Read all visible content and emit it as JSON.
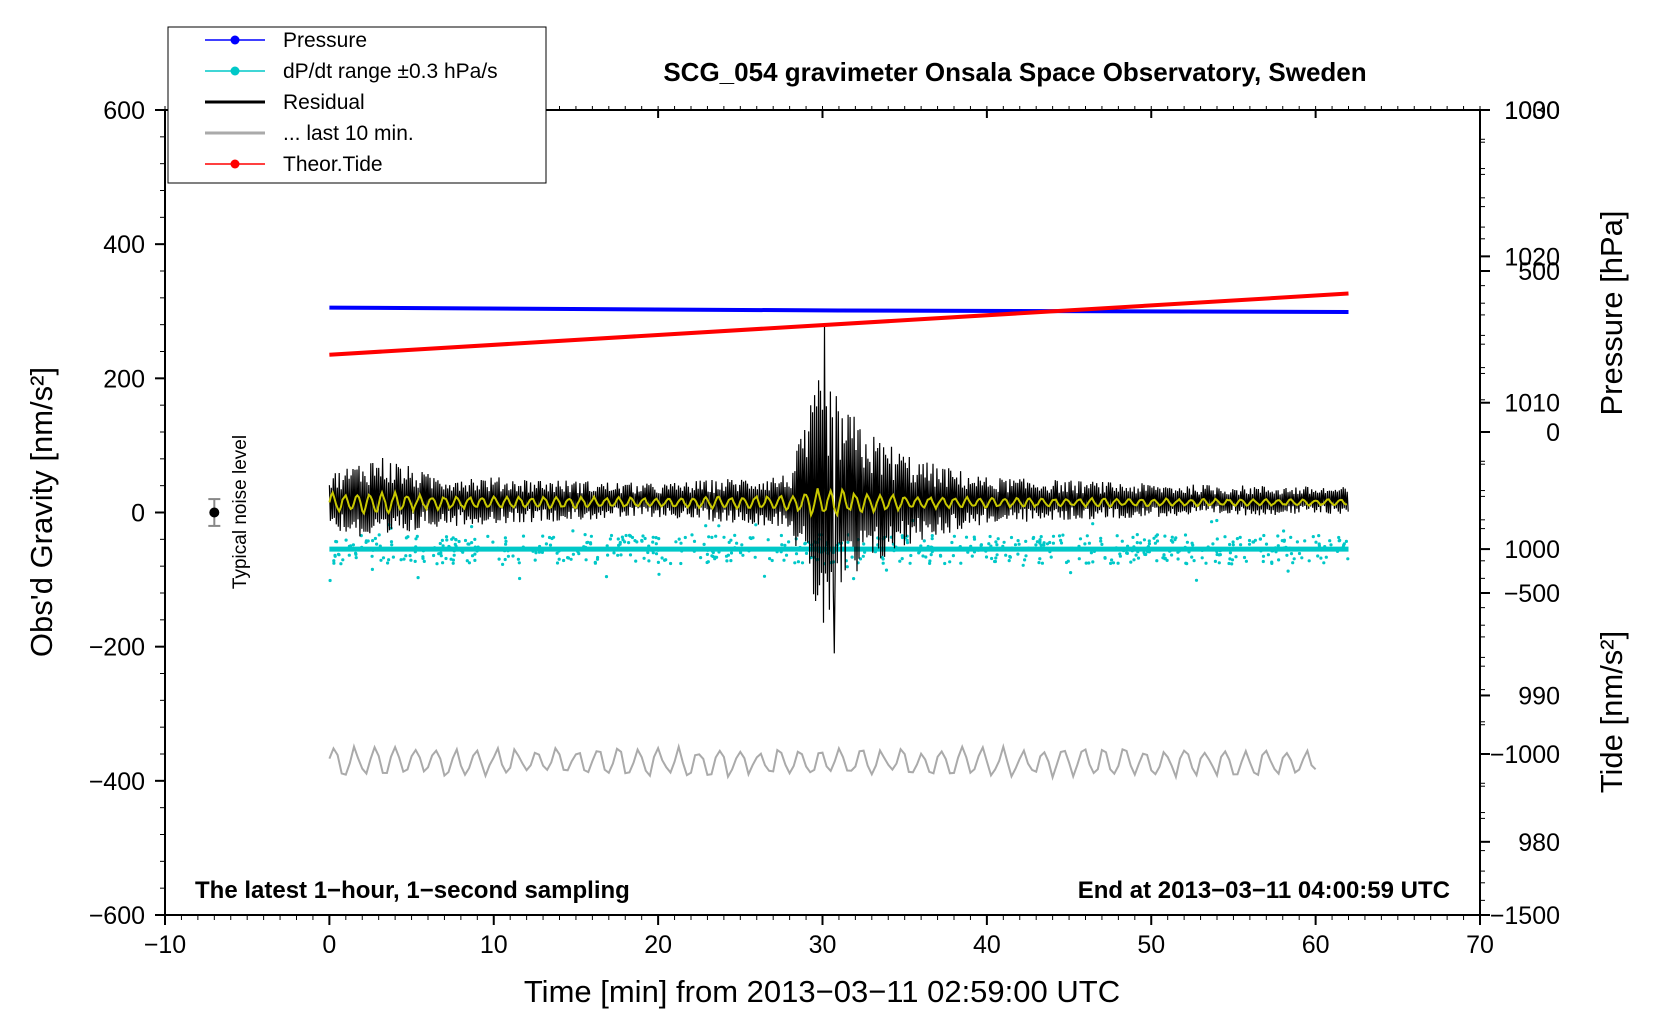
{
  "chart_data": {
    "type": "line",
    "title": "SCG_054 gravimeter Onsala Space Observatory, Sweden",
    "xlabel": "Time [min] from 2013−03−11 02:59:00 UTC",
    "ylabel_left": "Obs'd Gravity [nm/s²]",
    "ylabel_right_top": "Pressure [hPa]",
    "ylabel_right_bottom": "Tide [nm/s²]",
    "xlim": [
      -10,
      70
    ],
    "ylim": [
      -600,
      600
    ],
    "pressure_axis_range": [
      975,
      1030
    ],
    "tide_axis_range": [
      -1500,
      1000
    ],
    "x_ticks": [
      "−10",
      "0",
      "10",
      "20",
      "30",
      "40",
      "50",
      "60",
      "70"
    ],
    "y_ticks_left": [
      "600",
      "400",
      "200",
      "0",
      "−200",
      "−400",
      "−600"
    ],
    "y_ticks_pressure": [
      "1030",
      "1020",
      "1010",
      "1000",
      "990",
      "980"
    ],
    "y_ticks_tide": [
      "1000",
      "500",
      "0",
      "−500",
      "−1000",
      "−1500"
    ],
    "annotation_left": "The latest 1−hour, 1−second sampling",
    "annotation_right": "End at 2013−03−11 04:00:59 UTC",
    "noise_label": "Typical noise level",
    "noise_level": {
      "x": -7,
      "y": 0,
      "error": 20
    },
    "grid": false,
    "legend_position": "top-left",
    "legend": [
      {
        "label": "Pressure",
        "color": "#0000ff",
        "marker": true
      },
      {
        "label": "dP/dt range ±0.3 hPa/s",
        "color": "#00c8c8",
        "marker": true
      },
      {
        "label": "Residual",
        "color": "#000000",
        "marker": false
      },
      {
        "label": "... last 10 min.",
        "color": "#aaaaaa",
        "marker": false
      },
      {
        "label": "Theor.Tide",
        "color": "#ff0000",
        "marker": true
      }
    ],
    "series": [
      {
        "name": "Pressure",
        "axis": "pressure",
        "unit": "hPa",
        "color": "#0000ff",
        "x": [
          0,
          31,
          62
        ],
        "y": [
          1016.5,
          1016.3,
          1016.2
        ]
      },
      {
        "name": "dP/dt range ±0.3 hPa/s",
        "axis": "pressure",
        "unit": "hPa",
        "color": "#00c8c8",
        "x": [
          0,
          62
        ],
        "y": [
          1000,
          1000
        ],
        "scatter_spread": 1
      },
      {
        "name": "Residual",
        "axis": "gravity",
        "unit": "nm/s²",
        "color": "#000000",
        "x": [
          0,
          3,
          6,
          10,
          20,
          28,
          30,
          31,
          33,
          36,
          40,
          50,
          62
        ],
        "y_center": 18,
        "y_envelope": [
          40,
          70,
          40,
          35,
          25,
          40,
          200,
          150,
          100,
          60,
          35,
          25,
          20
        ],
        "extrema": {
          "max": 280,
          "min": -210
        }
      },
      {
        "name": "Residual (filtered)",
        "axis": "gravity",
        "unit": "nm/s²",
        "color": "#c8c800",
        "x": [
          0,
          3,
          6,
          10,
          20,
          28,
          30,
          31,
          33,
          36,
          40,
          50,
          62
        ],
        "y_center": 15,
        "y_envelope": [
          15,
          18,
          12,
          10,
          8,
          12,
          25,
          20,
          15,
          10,
          8,
          6,
          5
        ]
      },
      {
        "name": "... last 10 min.",
        "axis": "gravity",
        "unit": "nm/s²",
        "color": "#aaaaaa",
        "x": [
          0,
          60
        ],
        "y_center": -372,
        "y_envelope": [
          25,
          25
        ]
      },
      {
        "name": "Theor.Tide",
        "axis": "tide",
        "unit": "nm/s²",
        "color": "#ff0000",
        "x": [
          0,
          62
        ],
        "y": [
          240,
          430
        ]
      }
    ]
  }
}
